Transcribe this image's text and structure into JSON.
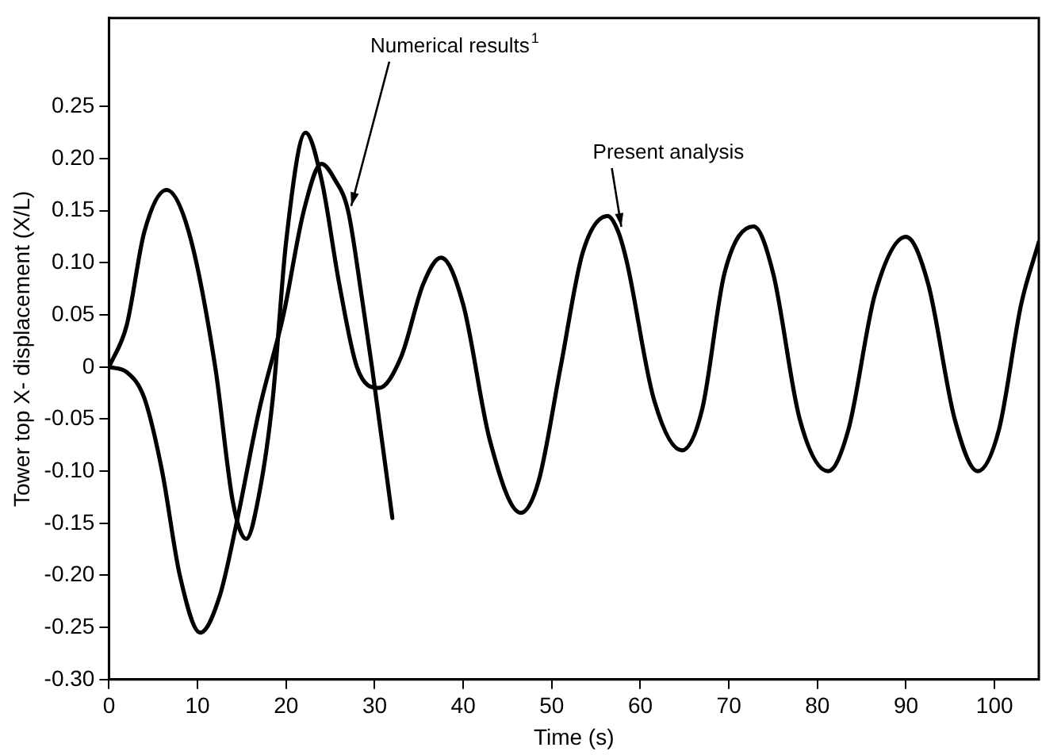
{
  "chart_data": {
    "type": "line",
    "xlabel": "Time (s)",
    "ylabel": "Tower top X- displacement (X/L)",
    "xlim": [
      0,
      105
    ],
    "xticks": [
      0,
      10,
      20,
      30,
      40,
      50,
      60,
      70,
      80,
      90,
      100
    ],
    "ylim": [
      -0.3,
      0.335
    ],
    "yticks": [
      {
        "value": -0.3,
        "label": "-0.30"
      },
      {
        "value": -0.25,
        "label": "-0.25"
      },
      {
        "value": -0.2,
        "label": "-0.20"
      },
      {
        "value": -0.15,
        "label": "-0.15"
      },
      {
        "value": -0.1,
        "label": "-0.10"
      },
      {
        "value": -0.05,
        "label": "-0.05"
      },
      {
        "value": 0,
        "label": "0"
      },
      {
        "value": 0.05,
        "label": "0.05"
      },
      {
        "value": 0.1,
        "label": "0.10"
      },
      {
        "value": 0.15,
        "label": "0.15"
      },
      {
        "value": 0.2,
        "label": "0.20"
      },
      {
        "value": 0.25,
        "label": "0.25"
      }
    ],
    "grid": false,
    "legend": false,
    "marker": "none",
    "line_style": "solid",
    "series": [
      {
        "color": "#000000",
        "x": [
          0,
          2,
          4,
          6.5,
          9,
          12,
          14,
          15.5,
          17,
          18.5,
          20,
          22.2,
          24,
          26,
          28,
          30.5,
          33,
          35.5,
          37.5,
          40,
          43,
          46.5,
          48.5,
          51,
          53.5,
          56.3,
          57.5,
          58.5,
          61.5,
          64.7,
          67,
          69.5,
          72.8,
          75,
          78,
          81.2,
          83.5,
          86.5,
          90,
          92.5,
          95.5,
          98.1,
          100.5,
          103,
          105
        ],
        "values": [
          0,
          0.04,
          0.13,
          0.17,
          0.13,
          0,
          -0.13,
          -0.165,
          -0.12,
          -0.03,
          0.12,
          0.225,
          0.18,
          0.08,
          0.0,
          -0.02,
          0.01,
          0.08,
          0.105,
          0.06,
          -0.07,
          -0.14,
          -0.11,
          0,
          0.11,
          0.145,
          0.13,
          0.1,
          -0.03,
          -0.08,
          -0.04,
          0.09,
          0.135,
          0.09,
          -0.05,
          -0.1,
          -0.06,
          0.07,
          0.125,
          0.08,
          -0.05,
          -0.1,
          -0.06,
          0.06,
          0.12
        ]
      },
      {
        "color": "#000000",
        "x": [
          0,
          2,
          4,
          6,
          8,
          10.3,
          12.5,
          14.4,
          17,
          19.7,
          22,
          24,
          25.5,
          27,
          28.5,
          29.7,
          32
        ],
        "values": [
          0,
          -0.005,
          -0.03,
          -0.1,
          -0.2,
          -0.255,
          -0.22,
          -0.15,
          -0.04,
          0.05,
          0.15,
          0.195,
          0.18,
          0.15,
          0.07,
          0,
          -0.145
        ]
      }
    ],
    "annotations": [
      {
        "text": "Numerical results$^{1}$",
        "x": 27,
        "y": 0.15
      },
      {
        "text": "Present analysis",
        "x": 57.5,
        "y": 0.13
      }
    ]
  }
}
